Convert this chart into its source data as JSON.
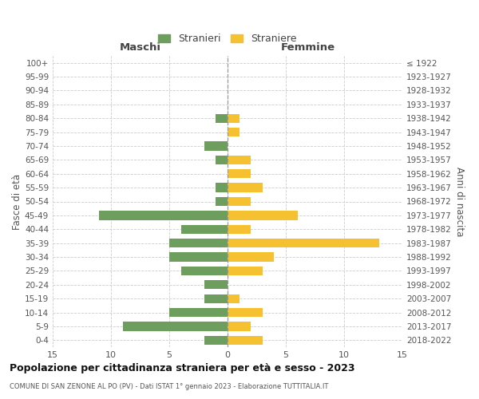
{
  "age_groups": [
    "0-4",
    "5-9",
    "10-14",
    "15-19",
    "20-24",
    "25-29",
    "30-34",
    "35-39",
    "40-44",
    "45-49",
    "50-54",
    "55-59",
    "60-64",
    "65-69",
    "70-74",
    "75-79",
    "80-84",
    "85-89",
    "90-94",
    "95-99",
    "100+"
  ],
  "birth_years": [
    "2018-2022",
    "2013-2017",
    "2008-2012",
    "2003-2007",
    "1998-2002",
    "1993-1997",
    "1988-1992",
    "1983-1987",
    "1978-1982",
    "1973-1977",
    "1968-1972",
    "1963-1967",
    "1958-1962",
    "1953-1957",
    "1948-1952",
    "1943-1947",
    "1938-1942",
    "1933-1937",
    "1928-1932",
    "1923-1927",
    "≤ 1922"
  ],
  "males": [
    2,
    9,
    5,
    2,
    2,
    4,
    5,
    5,
    4,
    11,
    1,
    1,
    0,
    1,
    2,
    0,
    1,
    0,
    0,
    0,
    0
  ],
  "females": [
    3,
    2,
    3,
    1,
    0,
    3,
    4,
    13,
    2,
    6,
    2,
    3,
    2,
    2,
    0,
    1,
    1,
    0,
    0,
    0,
    0
  ],
  "male_color": "#6d9e5e",
  "female_color": "#f5c131",
  "title": "Popolazione per cittadinanza straniera per età e sesso - 2023",
  "subtitle": "COMUNE DI SAN ZENONE AL PO (PV) - Dati ISTAT 1° gennaio 2023 - Elaborazione TUTTITALIA.IT",
  "ylabel_left": "Fasce di età",
  "ylabel_right": "Anni di nascita",
  "xlabel_left": "Maschi",
  "xlabel_right": "Femmine",
  "legend_stranieri": "Stranieri",
  "legend_straniere": "Straniere",
  "xlim": 15,
  "background_color": "#ffffff",
  "grid_color": "#cccccc"
}
